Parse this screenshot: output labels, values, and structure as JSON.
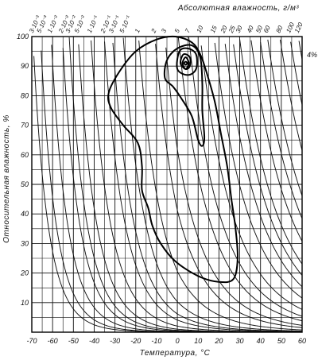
{
  "chart_data": {
    "type": "line",
    "title": "",
    "xlabel": "Температура, °С",
    "ylabel": "Относительная влажность, %",
    "top_axis_label": "Абсолютная влажность, г/м³",
    "xlim": [
      -70,
      60
    ],
    "ylim": [
      0,
      100
    ],
    "x_ticks": [
      -70,
      -60,
      -50,
      -40,
      -30,
      -20,
      -10,
      0,
      10,
      20,
      30,
      40,
      50,
      60
    ],
    "y_ticks": [
      10,
      20,
      30,
      40,
      50,
      60,
      70,
      80,
      90,
      100
    ],
    "x_tick_labels": [
      "-70",
      "-60",
      "-50",
      "-40",
      "-30",
      "-20",
      "-10",
      "0",
      "10",
      "20",
      "30",
      "40",
      "50",
      "60"
    ],
    "y_tick_labels": [
      "10",
      "20",
      "30",
      "40",
      "50",
      "60",
      "70",
      "80",
      "90",
      "100"
    ],
    "grid": true,
    "absolute_humidity_curves": [
      {
        "label": "3·10⁻³",
        "value": 0.003
      },
      {
        "label": "5·10⁻³",
        "value": 0.005
      },
      {
        "label": "1·10⁻²",
        "value": 0.01
      },
      {
        "label": "2·10⁻²",
        "value": 0.02
      },
      {
        "label": "3·10⁻²",
        "value": 0.03
      },
      {
        "label": "5·10⁻²",
        "value": 0.05
      },
      {
        "label": "1·10⁻¹",
        "value": 0.1
      },
      {
        "label": "2·10⁻¹",
        "value": 0.2
      },
      {
        "label": "3·10⁻¹",
        "value": 0.3
      },
      {
        "label": "5·10⁻¹",
        "value": 0.5
      },
      {
        "label": "1",
        "value": 1
      },
      {
        "label": "2",
        "value": 2
      },
      {
        "label": "3",
        "value": 3
      },
      {
        "label": "5",
        "value": 5
      },
      {
        "label": "7",
        "value": 7
      },
      {
        "label": "10",
        "value": 10
      },
      {
        "label": "15",
        "value": 15
      },
      {
        "label": "20",
        "value": 20
      },
      {
        "label": "25",
        "value": 25
      },
      {
        "label": "30",
        "value": 30
      },
      {
        "label": "40",
        "value": 40
      },
      {
        "label": "50",
        "value": 50
      },
      {
        "label": "60",
        "value": 60
      },
      {
        "label": "80",
        "value": 80
      },
      {
        "label": "100",
        "value": 100
      },
      {
        "label": "120",
        "value": 120
      }
    ],
    "contours": [
      {
        "label": "",
        "points": [
          [
            -1,
            100
          ],
          [
            -10,
            99
          ],
          [
            -20,
            95
          ],
          [
            -28,
            88
          ],
          [
            -33,
            81
          ],
          [
            -32,
            76
          ],
          [
            -26,
            70
          ],
          [
            -19,
            64
          ],
          [
            -17,
            56
          ],
          [
            -17,
            48
          ],
          [
            -14,
            42
          ],
          [
            -12,
            36
          ],
          [
            -8,
            30
          ],
          [
            -1,
            24
          ],
          [
            10,
            19
          ],
          [
            20,
            17
          ],
          [
            27,
            18
          ],
          [
            29,
            25
          ],
          [
            28,
            35
          ],
          [
            26,
            45
          ],
          [
            24,
            56
          ],
          [
            21,
            67
          ],
          [
            18,
            78
          ],
          [
            14,
            88
          ],
          [
            11,
            94
          ],
          [
            7,
            98
          ],
          [
            -1,
            100
          ]
        ]
      },
      {
        "label": "",
        "points": [
          [
            -2,
            83
          ],
          [
            -6,
            86
          ],
          [
            -5,
            92
          ],
          [
            0,
            96
          ],
          [
            7,
            97
          ],
          [
            11,
            93
          ],
          [
            12,
            84
          ],
          [
            12,
            75
          ],
          [
            13,
            66
          ],
          [
            12,
            63
          ],
          [
            10,
            65
          ],
          [
            7,
            73
          ],
          [
            2,
            79
          ],
          [
            -2,
            83
          ]
        ]
      },
      {
        "label": "",
        "points": [
          [
            0,
            89
          ],
          [
            1,
            95
          ],
          [
            5,
            96
          ],
          [
            9,
            94
          ],
          [
            9,
            89
          ],
          [
            5,
            87
          ],
          [
            0,
            89
          ]
        ]
      },
      {
        "label": "",
        "points": [
          [
            1.5,
            91
          ],
          [
            3,
            94
          ],
          [
            6,
            93
          ],
          [
            6,
            90
          ],
          [
            4,
            89
          ],
          [
            1.5,
            91
          ]
        ]
      },
      {
        "label": "",
        "points": [
          [
            4,
            93
          ],
          [
            5.5,
            91
          ],
          [
            4,
            89
          ],
          [
            2.5,
            91
          ],
          [
            4,
            93
          ]
        ]
      },
      {
        "label": "4%",
        "points": [
          [
            4,
            91.5
          ],
          [
            4.8,
            91
          ],
          [
            4,
            90.5
          ],
          [
            3.2,
            91
          ],
          [
            4,
            91.5
          ]
        ]
      }
    ]
  }
}
